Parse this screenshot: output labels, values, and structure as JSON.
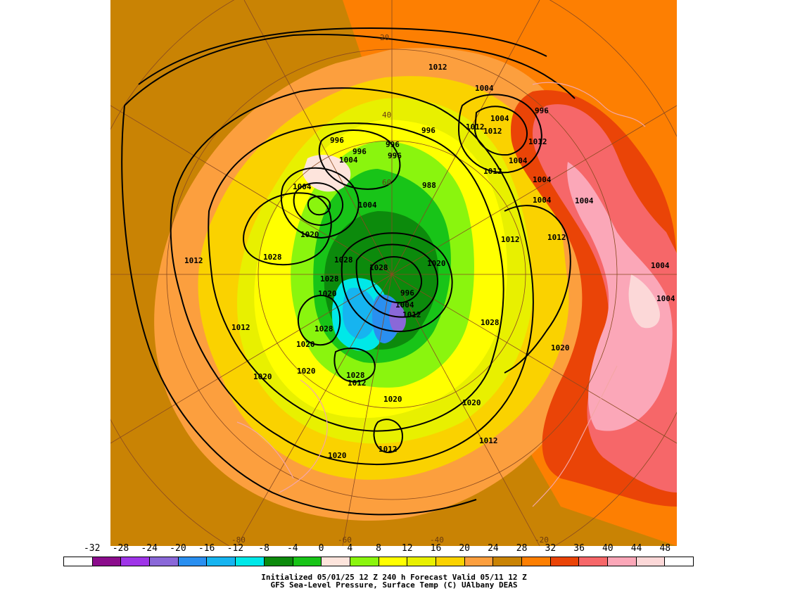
{
  "colorbar": {
    "labels": [
      "-32",
      "-28",
      "-24",
      "-20",
      "-16",
      "-12",
      "-8",
      "-4",
      "0",
      "4",
      "8",
      "12",
      "16",
      "20",
      "24",
      "28",
      "32",
      "36",
      "40",
      "44",
      "48"
    ],
    "colors": [
      "#ffffff",
      "#8b0c8c",
      "#9f35e8",
      "#8a68d8",
      "#2a8ff0",
      "#16b4f0",
      "#00e8e8",
      "#0c8a0c",
      "#18c418",
      "#fde4dc",
      "#8af50e",
      "#ffff00",
      "#e8f000",
      "#fad200",
      "#fc9f3e",
      "#c98304",
      "#fd7f02",
      "#ea4407",
      "#f66769",
      "#fba7b8",
      "#fcd8d8",
      "#ffffff"
    ]
  },
  "caption": {
    "line1": "Initialized 05/01/25 12 Z  240 h Forecast Valid 05/11 12 Z",
    "line2": "GFS Sea-Level Pressure, Surface Temp (C)    UAlbany DEAS"
  },
  "map": {
    "longitude_labels": [
      "20",
      "-80",
      "-60",
      "-40",
      "-20"
    ],
    "latitude_labels": [
      "40",
      "60"
    ],
    "isobar_labels": [
      "1012",
      "1004",
      "996",
      "1004",
      "1012",
      "1012",
      "996",
      "996",
      "996",
      "996",
      "1004",
      "1012",
      "1004",
      "996",
      "988",
      "1004",
      "1004",
      "1012",
      "1004",
      "1004",
      "1004",
      "1020",
      "1012",
      "1012",
      "1028",
      "1028",
      "1012",
      "1020",
      "1028",
      "996",
      "1004",
      "1012",
      "1020",
      "1028",
      "1004",
      "1004",
      "1012",
      "1020",
      "1028",
      "1020",
      "1020",
      "1020",
      "1020",
      "1012",
      "1012",
      "1020",
      "1012",
      "1020",
      "1028",
      "1028"
    ]
  }
}
